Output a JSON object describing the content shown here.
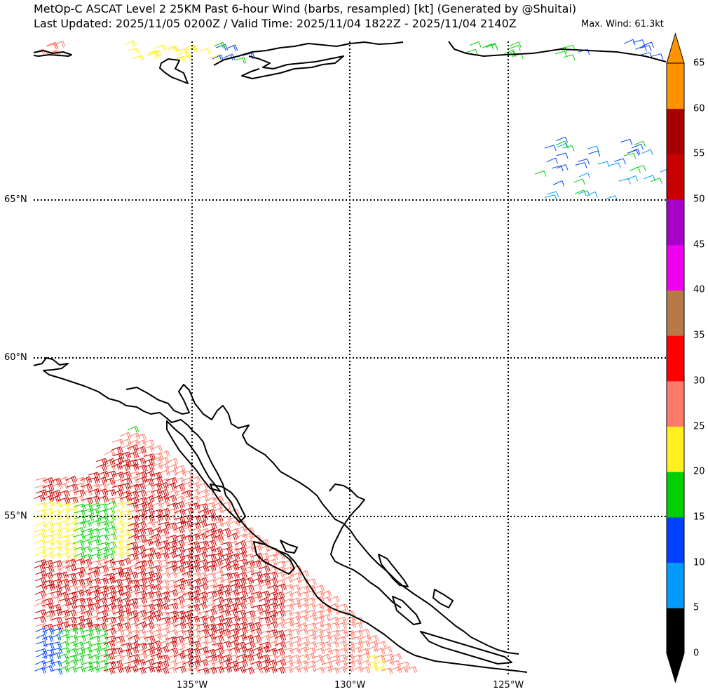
{
  "title_line1": "MetOp-C ASCAT Level 2 25KM Past 6-hour Wind (barbs, resampled) [kt] (Generated by @Shuitai)",
  "title_line2": "Last Updated: 2025/11/05 0200Z / Valid Time: 2025/11/04 1822Z - 2025/11/04 2140Z",
  "max_wind": "Max. Wind: 61.3kt",
  "lat_labels": [
    "65°N",
    "60°N",
    "55°N"
  ],
  "lon_labels": [
    "135°W",
    "130°W",
    "125°W"
  ],
  "colorbar": {
    "ticks": [
      "0",
      "5",
      "10",
      "15",
      "20",
      "25",
      "30",
      "35",
      "40",
      "45",
      "50",
      "55",
      "60",
      "65"
    ],
    "colors": [
      "#000000",
      "#009bff",
      "#0041ff",
      "#00d000",
      "#fff01e",
      "#ff7a6a",
      "#ff0000",
      "#b87848",
      "#f000f0",
      "#a800c8",
      "#c80000",
      "#a80000",
      "#ff9200"
    ],
    "under_color": "#000000",
    "over_color": "#ff9200"
  }
}
